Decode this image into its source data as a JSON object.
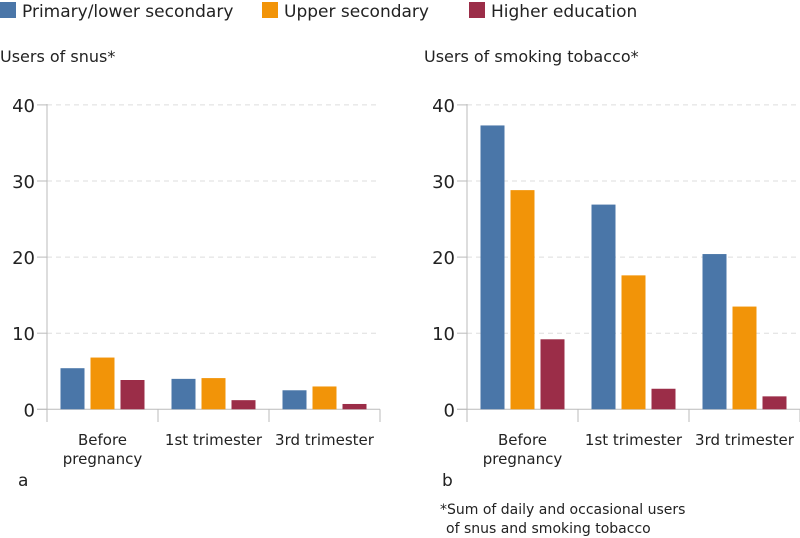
{
  "legend": [
    {
      "name": "Primary/lower secondary",
      "color": "#4a76a8"
    },
    {
      "name": "Upper secondary",
      "color": "#f29408"
    },
    {
      "name": "Higher education",
      "color": "#9b2d48"
    }
  ],
  "footnote": [
    "*Sum of daily and occasional users",
    "of snus and smoking tobacco"
  ],
  "chart_data": [
    {
      "type": "bar",
      "title": "Users of  snus*",
      "panel_label": "a",
      "categories": [
        [
          "Before",
          "pregnancy"
        ],
        [
          "1st trimester"
        ],
        [
          "3rd trimester"
        ]
      ],
      "ylim": [
        0,
        40
      ],
      "yticks": [
        0,
        10,
        20,
        30,
        40
      ],
      "grid": true,
      "series": [
        {
          "name": "Primary/lower secondary",
          "values": [
            5.4,
            4.0,
            2.5
          ]
        },
        {
          "name": "Upper secondary",
          "values": [
            6.8,
            4.1,
            3.0
          ]
        },
        {
          "name": "Higher education",
          "values": [
            3.85,
            1.2,
            0.7
          ]
        }
      ]
    },
    {
      "type": "bar",
      "title": "Users of smoking tobacco*",
      "panel_label": "b",
      "categories": [
        [
          "Before",
          "pregnancy"
        ],
        [
          "1st trimester"
        ],
        [
          "3rd trimester"
        ]
      ],
      "ylim": [
        0,
        40
      ],
      "yticks": [
        0,
        10,
        20,
        30,
        40
      ],
      "grid": true,
      "series": [
        {
          "name": "Primary/lower secondary",
          "values": [
            37.3,
            26.9,
            20.4
          ]
        },
        {
          "name": "Upper secondary",
          "values": [
            28.8,
            17.6,
            13.5
          ]
        },
        {
          "name": "Higher education",
          "values": [
            9.2,
            2.7,
            1.7
          ]
        }
      ]
    }
  ]
}
